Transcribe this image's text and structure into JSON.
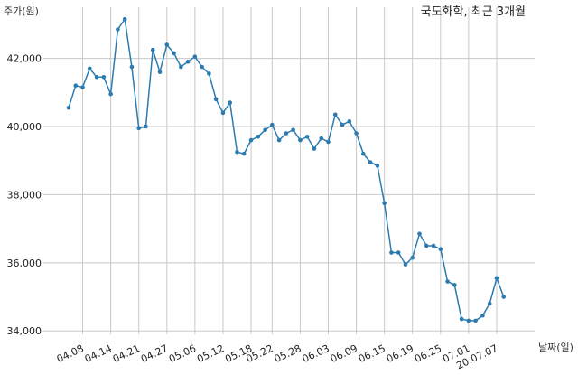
{
  "chart_data": {
    "type": "line",
    "title": "국도화학, 최근 3개월",
    "ylabel": "주가(원)",
    "xlabel": "날짜(일)",
    "ylim": [
      33900,
      43500
    ],
    "yticks": [
      34000,
      36000,
      38000,
      40000,
      42000
    ],
    "ytick_labels": [
      "34,000",
      "36,000",
      "38,000",
      "40,000",
      "42,000"
    ],
    "xtick_labels": [
      {
        "label": "04.08",
        "index": 2
      },
      {
        "label": "04.14",
        "index": 6
      },
      {
        "label": "04.21",
        "index": 10
      },
      {
        "label": "04.27",
        "index": 14
      },
      {
        "label": "05.06",
        "index": 18
      },
      {
        "label": "05.12",
        "index": 22
      },
      {
        "label": "05.18",
        "index": 26
      },
      {
        "label": "05.22",
        "index": 29
      },
      {
        "label": "05.28",
        "index": 33
      },
      {
        "label": "06.03",
        "index": 37
      },
      {
        "label": "06.09",
        "index": 41
      },
      {
        "label": "06.15",
        "index": 45
      },
      {
        "label": "06.19",
        "index": 49
      },
      {
        "label": "06.25",
        "index": 53
      },
      {
        "label": "07.01",
        "index": 57
      },
      {
        "label": "20.07.07",
        "index": 61
      }
    ],
    "grid": true,
    "color": "#2b7bb0",
    "series": [
      {
        "values": [
          40550,
          41200,
          41150,
          41700,
          41450,
          41450,
          40950,
          42850,
          43150,
          41750,
          39950,
          40000,
          42250,
          41600,
          42400,
          42150,
          41750,
          41900,
          42050,
          41750,
          41550,
          40800,
          40400,
          40700,
          39250,
          39200,
          39600,
          39700,
          39900,
          40050,
          39600,
          39800,
          39900,
          39600,
          39700,
          39350,
          39650,
          39550,
          40350,
          40050,
          40150,
          39800,
          39200,
          38950,
          38850,
          37750,
          36300,
          36300,
          35950,
          36150,
          36850,
          36500,
          36500,
          36400,
          35450,
          35350,
          34350,
          34300,
          34300,
          34450,
          34800,
          35550,
          35000
        ]
      }
    ]
  }
}
